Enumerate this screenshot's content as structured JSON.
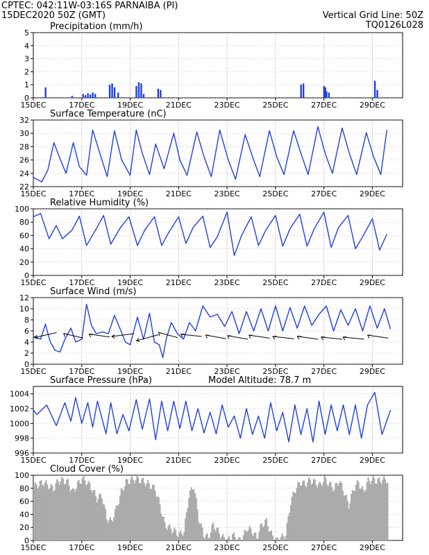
{
  "header": {
    "line1": "CPTEC:   042:11W-03:16S   PARNAIBA (PI)",
    "line2": "15DEC2020 50Z (GMT)",
    "grid_note": "Vertical Grid Line: 50Z",
    "code": "TQ0126L028"
  },
  "colors": {
    "header": "#e07a14",
    "title": "#e0218a",
    "series": "#1f3fe0",
    "cloud": "#ababab",
    "wind_arrow": "#000000"
  },
  "x_ticks": [
    "15DEC",
    "17DEC",
    "19DEC",
    "21DEC",
    "23DEC",
    "25DEC",
    "27DEC",
    "29DEC"
  ],
  "x_tick_days": [
    0,
    2,
    4,
    6,
    8,
    10,
    12,
    14
  ],
  "days_span": 15.25,
  "chart_data": [
    {
      "id": "precip",
      "type": "bar",
      "title": "Precipitation (mm/h)",
      "ylim": [
        0,
        5
      ],
      "yticks": [
        "0",
        "1",
        "2",
        "3",
        "4",
        "5"
      ],
      "x_days": [
        0.5,
        1.6,
        2.05,
        2.15,
        2.25,
        2.35,
        2.45,
        2.55,
        3.15,
        3.25,
        3.35,
        3.5,
        4.25,
        4.35,
        4.45,
        4.55,
        5.15,
        5.25,
        11.05,
        11.15,
        12.0,
        12.05,
        12.1,
        12.2,
        14.1,
        14.2
      ],
      "values": [
        0.8,
        0.15,
        0.3,
        0.2,
        0.35,
        0.25,
        0.4,
        0.3,
        1.0,
        1.1,
        0.8,
        0.4,
        0.9,
        1.2,
        1.1,
        0.3,
        0.7,
        0.6,
        1.0,
        1.1,
        0.9,
        0.8,
        0.5,
        0.4,
        1.3,
        0.6
      ]
    },
    {
      "id": "temp",
      "type": "line",
      "title": "Surface Temperature (nC)",
      "ylim": [
        22,
        32
      ],
      "yticks": [
        "22",
        "24",
        "26",
        "28",
        "30",
        "32"
      ],
      "x": [
        0.0,
        0.35,
        0.6,
        0.85,
        1.1,
        1.35,
        1.65,
        1.9,
        2.2,
        2.45,
        2.75,
        3.05,
        3.35,
        3.65,
        4.0,
        4.25,
        4.5,
        4.8,
        5.05,
        5.4,
        5.8,
        6.05,
        6.35,
        6.75,
        7.05,
        7.35,
        7.7,
        8.05,
        8.35,
        8.75,
        9.05,
        9.35,
        9.75,
        10.05,
        10.35,
        10.75,
        11.05,
        11.35,
        11.75,
        12.05,
        12.35,
        12.75,
        13.05,
        13.35,
        13.75,
        14.05,
        14.35,
        14.6
      ],
      "y": [
        23.4,
        22.7,
        24.5,
        28.6,
        26.2,
        24.0,
        28.6,
        25.0,
        23.7,
        30.5,
        27.0,
        23.5,
        30.4,
        26.0,
        23.7,
        30.5,
        27.0,
        23.8,
        28.4,
        24.7,
        30.0,
        26.0,
        23.7,
        30.2,
        26.5,
        23.5,
        30.5,
        26.0,
        23.1,
        29.8,
        26.5,
        23.5,
        30.4,
        26.5,
        23.8,
        30.4,
        27.0,
        23.8,
        31.0,
        27.0,
        24.0,
        30.8,
        27.0,
        23.8,
        30.1,
        26.5,
        23.8,
        30.5
      ]
    },
    {
      "id": "rh",
      "type": "line",
      "title": "Relative Humidity (%)",
      "ylim": [
        0,
        100
      ],
      "yticks": [
        "0",
        "20",
        "40",
        "60",
        "80",
        "100"
      ],
      "x": [
        0.0,
        0.3,
        0.65,
        0.95,
        1.2,
        1.6,
        1.9,
        2.2,
        2.6,
        2.9,
        3.2,
        3.6,
        3.95,
        4.3,
        4.6,
        5.0,
        5.3,
        5.6,
        6.0,
        6.3,
        6.6,
        7.0,
        7.3,
        7.6,
        8.0,
        8.3,
        8.6,
        9.0,
        9.3,
        9.6,
        10.0,
        10.3,
        10.6,
        11.0,
        11.3,
        11.6,
        12.0,
        12.3,
        12.6,
        13.0,
        13.3,
        13.6,
        14.0,
        14.3,
        14.6
      ],
      "y": [
        88,
        93,
        55,
        75,
        55,
        68,
        89,
        45,
        70,
        90,
        47,
        72,
        88,
        45,
        68,
        88,
        45,
        65,
        88,
        48,
        72,
        89,
        42,
        58,
        95,
        30,
        60,
        88,
        45,
        68,
        90,
        44,
        70,
        92,
        44,
        70,
        95,
        42,
        72,
        90,
        40,
        58,
        85,
        38,
        62
      ]
    },
    {
      "id": "wind",
      "type": "line",
      "title": "Surface Wind (m/s)",
      "ylim": [
        0,
        12
      ],
      "yticks": [
        "0",
        "2",
        "4",
        "6",
        "8",
        "10",
        "12"
      ],
      "x": [
        0.0,
        0.3,
        0.5,
        0.7,
        0.9,
        1.1,
        1.3,
        1.55,
        1.75,
        2.0,
        2.2,
        2.4,
        2.6,
        2.85,
        3.1,
        3.35,
        3.6,
        3.8,
        4.0,
        4.3,
        4.55,
        4.8,
        5.0,
        5.2,
        5.35,
        5.5,
        5.7,
        5.95,
        6.2,
        6.45,
        6.7,
        7.0,
        7.3,
        7.6,
        7.9,
        8.2,
        8.5,
        8.8,
        9.1,
        9.4,
        9.7,
        10.0,
        10.3,
        10.6,
        10.9,
        11.2,
        11.5,
        11.8,
        12.1,
        12.4,
        12.7,
        13.0,
        13.3,
        13.6,
        13.9,
        14.2,
        14.5,
        14.75
      ],
      "y": [
        5.0,
        4.5,
        7.2,
        4.0,
        2.5,
        2.2,
        4.5,
        6.5,
        4.0,
        4.5,
        10.8,
        7.0,
        5.5,
        5.8,
        5.5,
        8.8,
        6.2,
        4.0,
        3.5,
        8.5,
        4.5,
        9.2,
        4.0,
        3.5,
        1.2,
        4.8,
        7.5,
        5.5,
        4.5,
        7.5,
        6.0,
        10.5,
        8.5,
        9.0,
        6.8,
        9.5,
        5.5,
        9.5,
        6.0,
        10.0,
        6.0,
        10.5,
        6.0,
        10.2,
        6.5,
        10.5,
        7.0,
        9.0,
        10.5,
        6.0,
        9.8,
        7.0,
        10.0,
        6.0,
        10.5,
        6.5,
        10.0,
        6.3
      ],
      "arrows": [
        [
          0.5,
          5.2,
          0.2
        ],
        [
          1.6,
          4.2,
          -0.9
        ],
        [
          2.7,
          4.4,
          -0.6
        ],
        [
          3.7,
          5.0,
          0.0
        ],
        [
          4.7,
          4.8,
          0.3
        ],
        [
          5.5,
          4.3,
          -1.0
        ],
        [
          6.5,
          4.5,
          -0.5
        ],
        [
          7.5,
          4.1,
          -0.7
        ],
        [
          8.4,
          4.0,
          -0.7
        ],
        [
          9.3,
          4.2,
          -0.6
        ],
        [
          10.3,
          4.1,
          -0.5
        ],
        [
          11.3,
          4.0,
          -0.6
        ],
        [
          12.3,
          4.0,
          -0.5
        ],
        [
          13.2,
          4.0,
          -0.5
        ],
        [
          14.2,
          4.2,
          -0.6
        ]
      ]
    },
    {
      "id": "pressure",
      "type": "line",
      "title": "Surface Pressure (hPa)",
      "annotation": "Model Altitude: 78.7 m",
      "ylim": [
        996,
        1005
      ],
      "yticks": [
        "996",
        "998",
        "1000",
        "1002",
        "1004"
      ],
      "x": [
        0.0,
        0.15,
        0.55,
        0.95,
        1.3,
        1.55,
        1.75,
        2.0,
        2.25,
        2.45,
        2.65,
        3.0,
        3.2,
        3.45,
        3.7,
        3.95,
        4.25,
        4.5,
        4.8,
        5.05,
        5.3,
        5.55,
        5.8,
        6.05,
        6.3,
        6.55,
        6.8,
        7.05,
        7.3,
        7.55,
        7.8,
        8.05,
        8.3,
        8.55,
        8.8,
        9.05,
        9.3,
        9.55,
        9.8,
        10.05,
        10.3,
        10.55,
        10.8,
        11.05,
        11.3,
        11.55,
        11.8,
        12.05,
        12.3,
        12.55,
        12.8,
        13.05,
        13.3,
        13.55,
        13.8,
        14.1,
        14.4,
        14.75
      ],
      "y": [
        1001.8,
        1001.2,
        1002.5,
        999.7,
        1002.8,
        1000.3,
        1003.5,
        1000.0,
        1002.8,
        999.5,
        1003.0,
        998.6,
        1002.8,
        998.6,
        1001.2,
        999.0,
        1003.2,
        999.2,
        1003.3,
        997.8,
        1003.0,
        999.0,
        1003.0,
        999.3,
        1003.0,
        999.0,
        1002.0,
        998.7,
        1001.5,
        998.6,
        1002.5,
        999.5,
        1001.0,
        998.0,
        1002.0,
        998.5,
        1001.0,
        998.0,
        1002.8,
        999.0,
        1001.5,
        997.5,
        1002.5,
        998.5,
        1002.0,
        997.5,
        1003.0,
        998.5,
        1002.5,
        999.0,
        1002.5,
        998.5,
        1002.5,
        998.0,
        1002.5,
        1004.2,
        998.5,
        1001.8
      ]
    },
    {
      "id": "cloud",
      "type": "area",
      "title": "Cloud Cover (%)",
      "ylim": [
        0,
        100
      ],
      "yticks": [
        "0",
        "20",
        "40",
        "60",
        "80",
        "100"
      ],
      "x": [
        0.0,
        0.2,
        0.4,
        0.6,
        0.8,
        1.0,
        1.2,
        1.4,
        1.6,
        1.8,
        2.0,
        2.2,
        2.4,
        2.6,
        2.8,
        3.0,
        3.2,
        3.4,
        3.6,
        3.8,
        4.0,
        4.2,
        4.4,
        4.6,
        4.8,
        5.0,
        5.2,
        5.4,
        5.6,
        5.8,
        6.0,
        6.2,
        6.4,
        6.6,
        6.8,
        7.0,
        7.2,
        7.4,
        7.6,
        7.8,
        8.0,
        8.2,
        8.4,
        8.6,
        8.8,
        9.0,
        9.2,
        9.4,
        9.6,
        9.8,
        10.0,
        10.2,
        10.4,
        10.6,
        10.8,
        11.0,
        11.2,
        11.4,
        11.6,
        11.8,
        12.0,
        12.2,
        12.4,
        12.6,
        12.8,
        13.0,
        13.2,
        13.4,
        13.6,
        13.8,
        14.0,
        14.2,
        14.4,
        14.6
      ],
      "y": [
        88,
        92,
        95,
        90,
        85,
        97,
        98,
        95,
        80,
        92,
        100,
        95,
        85,
        70,
        75,
        40,
        35,
        55,
        80,
        95,
        98,
        100,
        98,
        95,
        90,
        85,
        60,
        30,
        25,
        20,
        15,
        20,
        75,
        90,
        40,
        15,
        10,
        30,
        20,
        10,
        5,
        15,
        5,
        8,
        25,
        20,
        10,
        30,
        35,
        15,
        5,
        10,
        15,
        65,
        85,
        95,
        92,
        98,
        95,
        90,
        100,
        92,
        85,
        98,
        80,
        60,
        85,
        95,
        80,
        97,
        99,
        97,
        99,
        98
      ]
    }
  ]
}
